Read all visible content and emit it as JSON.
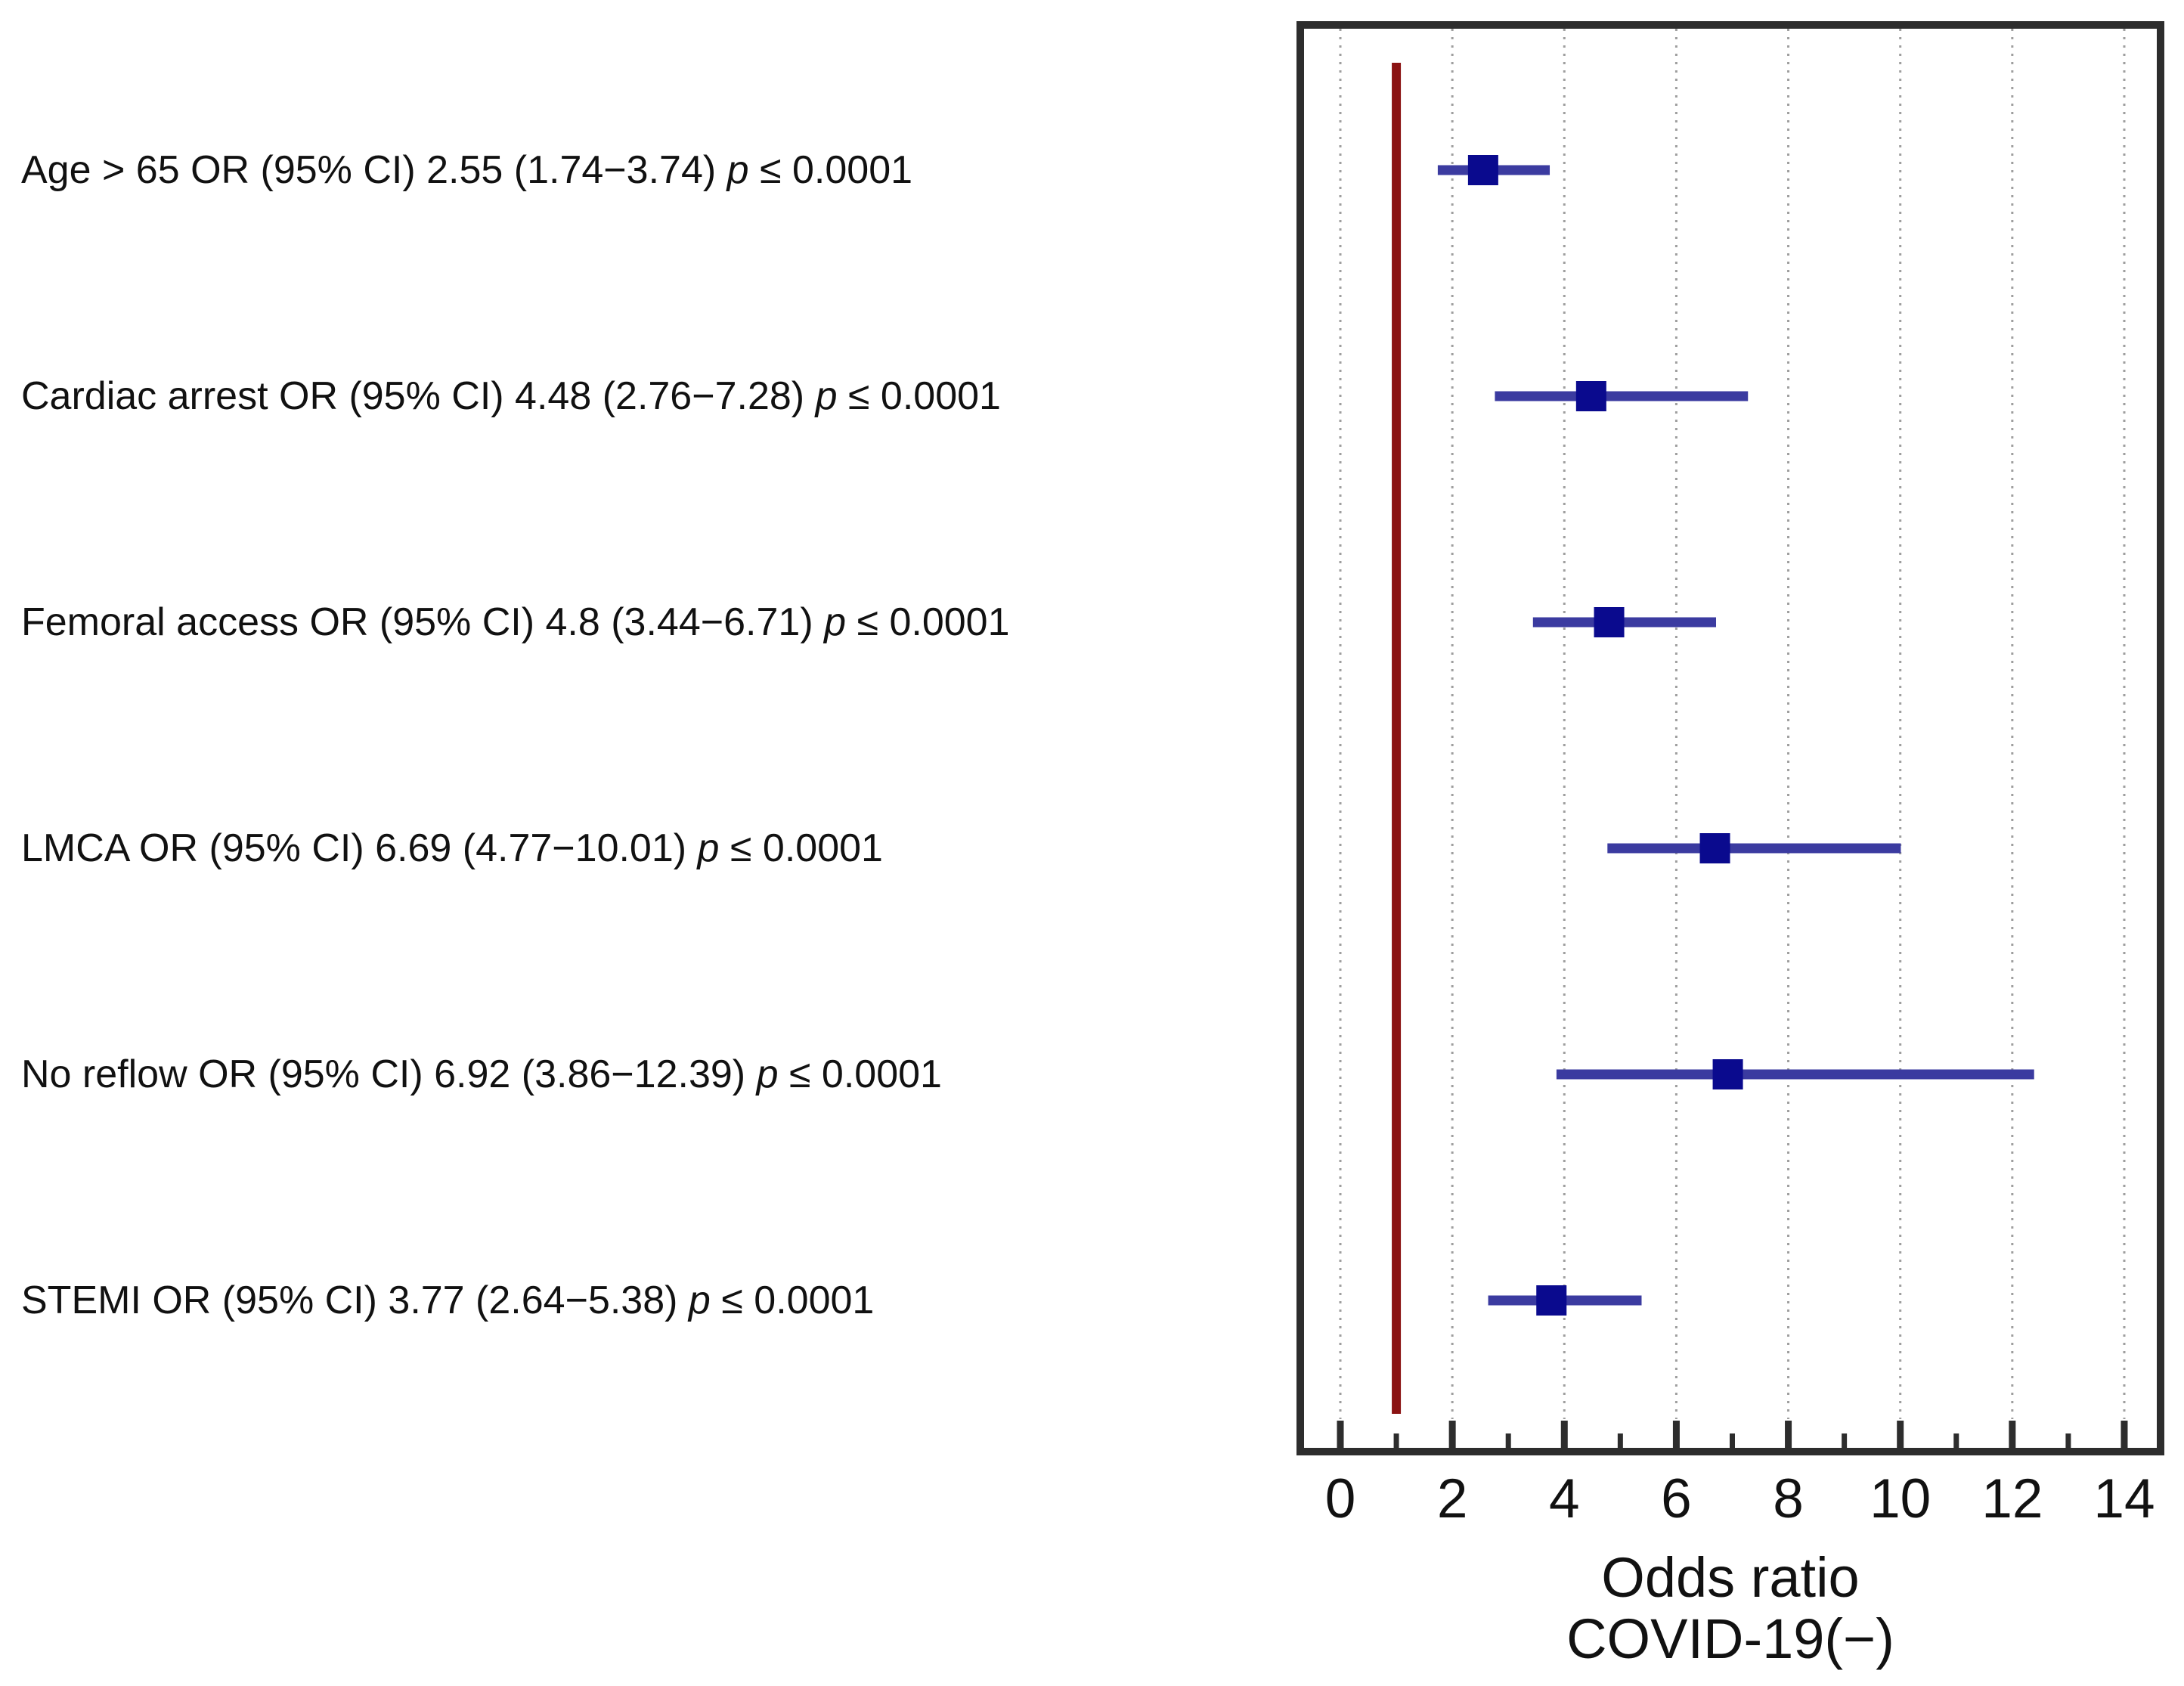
{
  "figure": {
    "background": "#ffffff",
    "kind": "forest-plot"
  },
  "chart_data": {
    "type": "scatter",
    "subtype": "forest-plot",
    "title": "",
    "xlabel_line1": "Odds ratio",
    "xlabel_line2": "COVID-19(−)",
    "x_axis": {
      "major_ticks": [
        0,
        2,
        4,
        6,
        8,
        10,
        12,
        14
      ],
      "major_tick_labels": [
        "0",
        "2",
        "4",
        "6",
        "8",
        "10",
        "12",
        "14"
      ],
      "minor_ticks": [
        1,
        3,
        5,
        7,
        9,
        11,
        13
      ],
      "xlim": [
        -0.65,
        14.58
      ],
      "gridlines_at": [
        0,
        2,
        4,
        6,
        8,
        10,
        12,
        14
      ],
      "grid_style": "dotted"
    },
    "reference_line": {
      "value": 1
    },
    "legend": null,
    "rows": [
      {
        "label": "Age > 65 OR (95% CI) 2.55 (1.74−3.74)",
        "p_var": "p",
        "p_rest": "≤ 0.0001",
        "or": 2.55,
        "ci_low": 1.74,
        "ci_high": 3.74
      },
      {
        "label": "Cardiac arrest OR (95% CI) 4.48 (2.76−7.28)",
        "p_var": "p",
        "p_rest": "≤ 0.0001",
        "or": 4.48,
        "ci_low": 2.76,
        "ci_high": 7.28
      },
      {
        "label": "Femoral access OR (95% CI) 4.8 (3.44−6.71)",
        "p_var": "p",
        "p_rest": "≤ 0.0001",
        "or": 4.8,
        "ci_low": 3.44,
        "ci_high": 6.71
      },
      {
        "label": "LMCA OR (95% CI) 6.69 (4.77−10.01)",
        "p_var": "p",
        "p_rest": "≤ 0.0001",
        "or": 6.69,
        "ci_low": 4.77,
        "ci_high": 10.01
      },
      {
        "label": "No reflow OR (95% CI) 6.92 (3.86−12.39)",
        "p_var": "p",
        "p_rest": "≤ 0.0001",
        "or": 6.92,
        "ci_low": 3.86,
        "ci_high": 12.39
      },
      {
        "label": "STEMI OR (95% CI) 3.77 (2.64−5.38)",
        "p_var": "p",
        "p_rest": "≤ 0.0001",
        "or": 3.77,
        "ci_low": 2.64,
        "ci_high": 5.38
      }
    ],
    "colors": {
      "marker": "#0a0a8e",
      "ci_line": "#3b3ba0",
      "reference_line": "#8b1212",
      "box_border": "#2d2d2d",
      "tick": "#2d2d2d",
      "gridline": "#9e9e9e",
      "text": "#111111"
    }
  }
}
